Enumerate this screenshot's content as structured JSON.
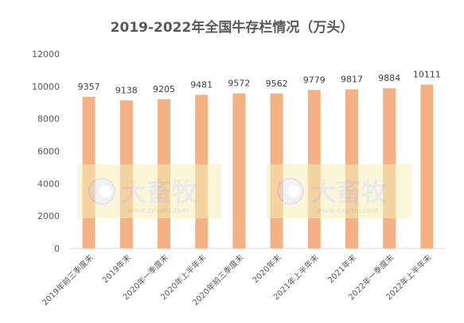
{
  "chart_data": {
    "type": "bar",
    "title": "2019-2022年全国牛存栏情况（万头）",
    "xlabel": "",
    "ylabel": "",
    "categories": [
      "2019年前三季度末",
      "2019年末",
      "2020年一季度末",
      "2020年上半年末",
      "2020年前三季度末",
      "2020年末",
      "2021年上半年末",
      "2021年末",
      "2022年一季度末",
      "2022年上半年末"
    ],
    "values": [
      9357,
      9138,
      9205,
      9481,
      9572,
      9562,
      9779,
      9817,
      9884,
      10111
    ],
    "ylim": [
      0,
      12000
    ],
    "yticks": [
      0,
      2000,
      4000,
      6000,
      8000,
      10000,
      12000
    ],
    "grid": false,
    "bar_color": "#F4B183"
  },
  "watermark": {
    "brand": "大畜牧",
    "domain": "www.dxumu.com"
  }
}
